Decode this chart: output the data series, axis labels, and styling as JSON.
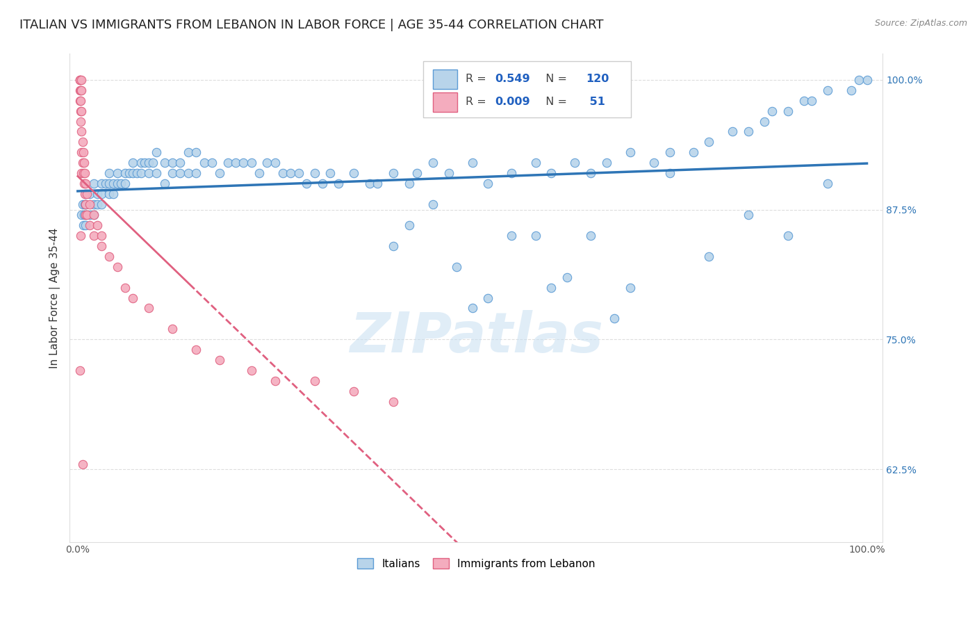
{
  "title": "ITALIAN VS IMMIGRANTS FROM LEBANON IN LABOR FORCE | AGE 35-44 CORRELATION CHART",
  "source": "Source: ZipAtlas.com",
  "ylabel": "In Labor Force | Age 35-44",
  "xlim": [
    -0.01,
    1.02
  ],
  "ylim": [
    0.555,
    1.025
  ],
  "right_yticks": [
    0.625,
    0.75,
    0.875,
    1.0
  ],
  "right_yticklabels": [
    "62.5%",
    "75.0%",
    "87.5%",
    "100.0%"
  ],
  "xticks": [
    0.0,
    0.1,
    0.2,
    0.3,
    0.4,
    0.5,
    0.6,
    0.7,
    0.8,
    0.9,
    1.0
  ],
  "xticklabels": [
    "0.0%",
    "",
    "",
    "",
    "",
    "",
    "",
    "",
    "",
    "",
    "100.0%"
  ],
  "R_italian": 0.549,
  "N_italian": 120,
  "R_lebanon": 0.009,
  "N_lebanon": 51,
  "blue_fill": "#B8D4EA",
  "blue_edge": "#5B9BD5",
  "pink_fill": "#F4ACBE",
  "pink_edge": "#E06080",
  "blue_line": "#2E75B6",
  "pink_line": "#E06080",
  "grid_color": "#DDDDDD",
  "watermark": "ZIPatlas",
  "title_fontsize": 13,
  "axis_label_fontsize": 11,
  "tick_label_fontsize": 10,
  "legend_r_color": "#2060C0",
  "blue_x": [
    0.005,
    0.006,
    0.007,
    0.008,
    0.009,
    0.01,
    0.01,
    0.01,
    0.01,
    0.015,
    0.015,
    0.02,
    0.02,
    0.02,
    0.025,
    0.025,
    0.03,
    0.03,
    0.03,
    0.035,
    0.04,
    0.04,
    0.04,
    0.045,
    0.045,
    0.05,
    0.05,
    0.055,
    0.06,
    0.06,
    0.065,
    0.07,
    0.07,
    0.075,
    0.08,
    0.08,
    0.085,
    0.09,
    0.09,
    0.095,
    0.1,
    0.1,
    0.11,
    0.11,
    0.12,
    0.12,
    0.13,
    0.13,
    0.14,
    0.14,
    0.15,
    0.15,
    0.16,
    0.17,
    0.18,
    0.19,
    0.2,
    0.21,
    0.22,
    0.23,
    0.24,
    0.25,
    0.26,
    0.27,
    0.28,
    0.29,
    0.3,
    0.31,
    0.32,
    0.33,
    0.35,
    0.37,
    0.38,
    0.4,
    0.42,
    0.43,
    0.45,
    0.47,
    0.5,
    0.52,
    0.55,
    0.58,
    0.6,
    0.63,
    0.65,
    0.67,
    0.7,
    0.73,
    0.75,
    0.78,
    0.8,
    0.83,
    0.85,
    0.87,
    0.88,
    0.9,
    0.92,
    0.93,
    0.95,
    0.98,
    0.99,
    1.0,
    0.4,
    0.45,
    0.5,
    0.55,
    0.6,
    0.65,
    0.7,
    0.75,
    0.8,
    0.85,
    0.9,
    0.95,
    0.42,
    0.48,
    0.52,
    0.58,
    0.62,
    0.68,
    0.73,
    0.78
  ],
  "blue_y": [
    0.87,
    0.88,
    0.86,
    0.87,
    0.88,
    0.89,
    0.87,
    0.88,
    0.86,
    0.89,
    0.87,
    0.9,
    0.88,
    0.87,
    0.89,
    0.88,
    0.9,
    0.89,
    0.88,
    0.9,
    0.91,
    0.89,
    0.9,
    0.9,
    0.89,
    0.91,
    0.9,
    0.9,
    0.91,
    0.9,
    0.91,
    0.92,
    0.91,
    0.91,
    0.92,
    0.91,
    0.92,
    0.92,
    0.91,
    0.92,
    0.93,
    0.91,
    0.92,
    0.9,
    0.92,
    0.91,
    0.92,
    0.91,
    0.93,
    0.91,
    0.93,
    0.91,
    0.92,
    0.92,
    0.91,
    0.92,
    0.92,
    0.92,
    0.92,
    0.91,
    0.92,
    0.92,
    0.91,
    0.91,
    0.91,
    0.9,
    0.91,
    0.9,
    0.91,
    0.9,
    0.91,
    0.9,
    0.9,
    0.91,
    0.9,
    0.91,
    0.92,
    0.91,
    0.92,
    0.9,
    0.91,
    0.92,
    0.91,
    0.92,
    0.91,
    0.92,
    0.93,
    0.92,
    0.93,
    0.93,
    0.94,
    0.95,
    0.95,
    0.96,
    0.97,
    0.97,
    0.98,
    0.98,
    0.99,
    0.99,
    1.0,
    1.0,
    0.84,
    0.88,
    0.78,
    0.85,
    0.8,
    0.85,
    0.8,
    0.91,
    0.83,
    0.87,
    0.85,
    0.9,
    0.86,
    0.82,
    0.79,
    0.85,
    0.81,
    0.77,
    0.87,
    0.85
  ],
  "pink_x": [
    0.003,
    0.003,
    0.003,
    0.003,
    0.003,
    0.004,
    0.004,
    0.004,
    0.004,
    0.005,
    0.005,
    0.005,
    0.005,
    0.005,
    0.005,
    0.006,
    0.006,
    0.007,
    0.007,
    0.008,
    0.008,
    0.009,
    0.009,
    0.01,
    0.01,
    0.01,
    0.012,
    0.012,
    0.015,
    0.015,
    0.02,
    0.02,
    0.025,
    0.03,
    0.03,
    0.04,
    0.05,
    0.06,
    0.07,
    0.09,
    0.12,
    0.15,
    0.18,
    0.22,
    0.25,
    0.3,
    0.35,
    0.4,
    0.003,
    0.004,
    0.006
  ],
  "pink_y": [
    1.0,
    1.0,
    1.0,
    0.99,
    0.98,
    0.99,
    0.98,
    0.97,
    0.96,
    1.0,
    0.99,
    0.97,
    0.95,
    0.93,
    0.91,
    0.94,
    0.92,
    0.93,
    0.91,
    0.92,
    0.9,
    0.91,
    0.89,
    0.9,
    0.88,
    0.87,
    0.89,
    0.87,
    0.88,
    0.86,
    0.87,
    0.85,
    0.86,
    0.85,
    0.84,
    0.83,
    0.82,
    0.8,
    0.79,
    0.78,
    0.76,
    0.74,
    0.73,
    0.72,
    0.71,
    0.71,
    0.7,
    0.69,
    0.72,
    0.85,
    0.63
  ]
}
